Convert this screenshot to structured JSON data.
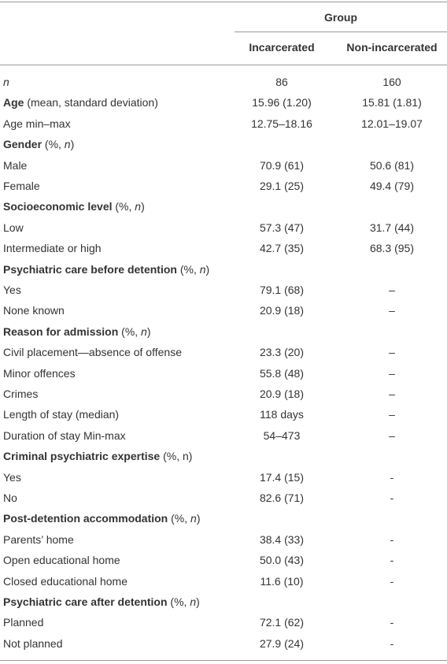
{
  "table": {
    "header": {
      "group": "Group",
      "columns": [
        "Incarcerated",
        "Non-incarcerated"
      ]
    },
    "rows": [
      {
        "label": [
          {
            "text": "n",
            "style": "italic"
          }
        ],
        "cells": [
          "86",
          "160"
        ]
      },
      {
        "label": [
          {
            "text": "Age",
            "style": "bold"
          },
          {
            "text": " (mean, standard deviation)"
          }
        ],
        "cells": [
          "15.96 (1.20)",
          "15.81 (1.81)"
        ]
      },
      {
        "label": [
          {
            "text": "Age min–max"
          }
        ],
        "cells": [
          "12.75–18.16",
          "12.01–19.07"
        ]
      },
      {
        "label": [
          {
            "text": "Gender",
            "style": "bold"
          },
          {
            "text": " (%, "
          },
          {
            "text": "n",
            "style": "italic"
          },
          {
            "text": ")"
          }
        ]
      },
      {
        "label": [
          {
            "text": "Male"
          }
        ],
        "cells": [
          "70.9 (61)",
          "50.6 (81)"
        ]
      },
      {
        "label": [
          {
            "text": "Female"
          }
        ],
        "cells": [
          "29.1 (25)",
          "49.4 (79)"
        ]
      },
      {
        "label": [
          {
            "text": "Socioeconomic level",
            "style": "bold"
          },
          {
            "text": " (%, "
          },
          {
            "text": "n",
            "style": "italic"
          },
          {
            "text": ")"
          }
        ]
      },
      {
        "label": [
          {
            "text": "Low"
          }
        ],
        "cells": [
          "57.3 (47)",
          "31.7 (44)"
        ]
      },
      {
        "label": [
          {
            "text": "Intermediate or high"
          }
        ],
        "cells": [
          "42.7 (35)",
          "68.3 (95)"
        ]
      },
      {
        "label": [
          {
            "text": "Psychiatric care before detention",
            "style": "bold"
          },
          {
            "text": " (%, "
          },
          {
            "text": "n",
            "style": "italic"
          },
          {
            "text": ")"
          }
        ]
      },
      {
        "label": [
          {
            "text": "Yes"
          }
        ],
        "cells": [
          "79.1 (68)",
          "–"
        ]
      },
      {
        "label": [
          {
            "text": "None known"
          }
        ],
        "cells": [
          "20.9 (18)",
          "–"
        ]
      },
      {
        "label": [
          {
            "text": "Reason for admission",
            "style": "bold"
          },
          {
            "text": " (%, "
          },
          {
            "text": "n",
            "style": "italic"
          },
          {
            "text": ")"
          }
        ]
      },
      {
        "label": [
          {
            "text": "Civil placement—absence of offense"
          }
        ],
        "cells": [
          "23.3 (20)",
          "–"
        ]
      },
      {
        "label": [
          {
            "text": "Minor offences"
          }
        ],
        "cells": [
          "55.8 (48)",
          "–"
        ]
      },
      {
        "label": [
          {
            "text": "Crimes"
          }
        ],
        "cells": [
          "20.9 (18)",
          "–"
        ]
      },
      {
        "label": [
          {
            "text": "Length of stay (median)"
          }
        ],
        "cells": [
          "118 days",
          "–"
        ]
      },
      {
        "label": [
          {
            "text": "Duration of stay Min-max"
          }
        ],
        "cells": [
          "54–473",
          "–"
        ]
      },
      {
        "label": [
          {
            "text": "Criminal psychiatric expertise",
            "style": "bold"
          },
          {
            "text": " (%, n)"
          }
        ]
      },
      {
        "label": [
          {
            "text": "Yes"
          }
        ],
        "cells": [
          "17.4 (15)",
          "-"
        ]
      },
      {
        "label": [
          {
            "text": "No"
          }
        ],
        "cells": [
          "82.6 (71)",
          "-"
        ]
      },
      {
        "label": [
          {
            "text": "Post-detention accommodation",
            "style": "bold"
          },
          {
            "text": " (%, "
          },
          {
            "text": "n",
            "style": "italic"
          },
          {
            "text": ")"
          }
        ]
      },
      {
        "label": [
          {
            "text": "Parents’ home"
          }
        ],
        "cells": [
          "38.4 (33)",
          "-"
        ]
      },
      {
        "label": [
          {
            "text": "Open educational home"
          }
        ],
        "cells": [
          "50.0 (43)",
          "-"
        ]
      },
      {
        "label": [
          {
            "text": "Closed educational home"
          }
        ],
        "cells": [
          "11.6 (10)",
          "-"
        ]
      },
      {
        "label": [
          {
            "text": "Psychiatric care after detention",
            "style": "bold"
          },
          {
            "text": " (%, "
          },
          {
            "text": "n",
            "style": "italic"
          },
          {
            "text": ")"
          }
        ]
      },
      {
        "label": [
          {
            "text": "Planned"
          }
        ],
        "cells": [
          "72.1 (62)",
          "-"
        ]
      },
      {
        "label": [
          {
            "text": "Not planned"
          }
        ],
        "cells": [
          "27.9 (24)",
          "-"
        ]
      }
    ]
  }
}
